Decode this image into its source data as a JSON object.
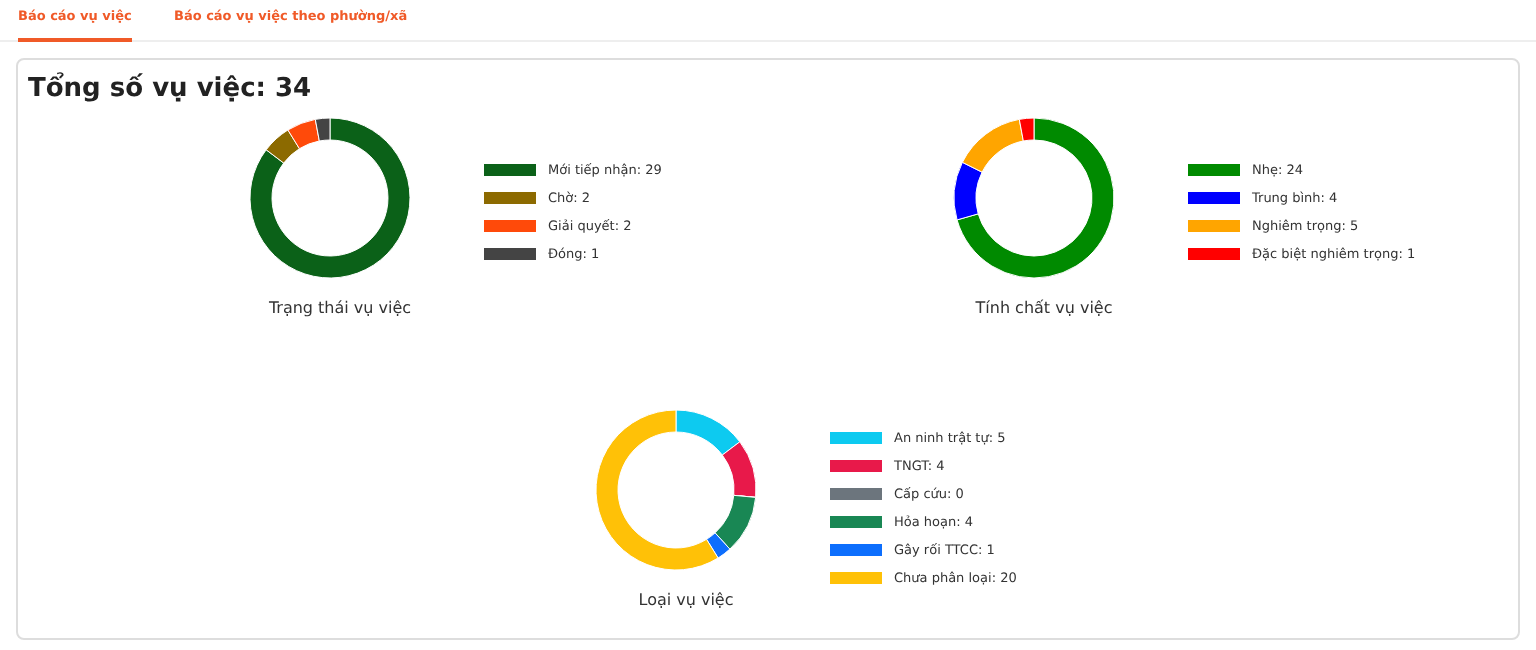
{
  "chart_data": [
    {
      "type": "other",
      "title": "Tổng số vụ việc: 34",
      "annotations": [
        "Báo cáo vụ việc",
        "Báo cáo vụ việc theo phường/xã"
      ]
    },
    {
      "type": "donut",
      "title": "Trạng thái vụ việc",
      "categories": [
        "Mới tiếp nhận: 29",
        "Chờ: 2",
        "Giải quyết: 2",
        "Đóng: 1"
      ],
      "values": [
        29,
        2,
        2,
        1
      ],
      "colors": [
        "#0b6118",
        "#8c6a00",
        "#ff4a0a",
        "#444444"
      ],
      "legend": "right"
    },
    {
      "type": "donut",
      "title": "Tính chất vụ việc",
      "categories": [
        "Nhẹ: 24",
        "Trung bình: 4",
        "Nghiêm trọng: 5",
        "Đặc biệt nghiêm trọng: 1"
      ],
      "values": [
        24,
        4,
        5,
        1
      ],
      "colors": [
        "#008a00",
        "#0000ff",
        "#ffa500",
        "#ff0000"
      ],
      "legend": "right"
    },
    {
      "type": "donut",
      "title": "Loại vụ việc",
      "categories": [
        "An ninh trật tự: 5",
        "TNGT: 4",
        "Cấp cứu: 0",
        "Hỏa hoạn: 4",
        "Gây rối TTCC: 1",
        "Chưa phân loại: 20"
      ],
      "values": [
        5,
        4,
        0,
        4,
        1,
        20
      ],
      "colors": [
        "#0dcaf0",
        "#e8194a",
        "#6c757d",
        "#198754",
        "#0d6efd",
        "#ffc107"
      ],
      "legend": "right"
    }
  ]
}
